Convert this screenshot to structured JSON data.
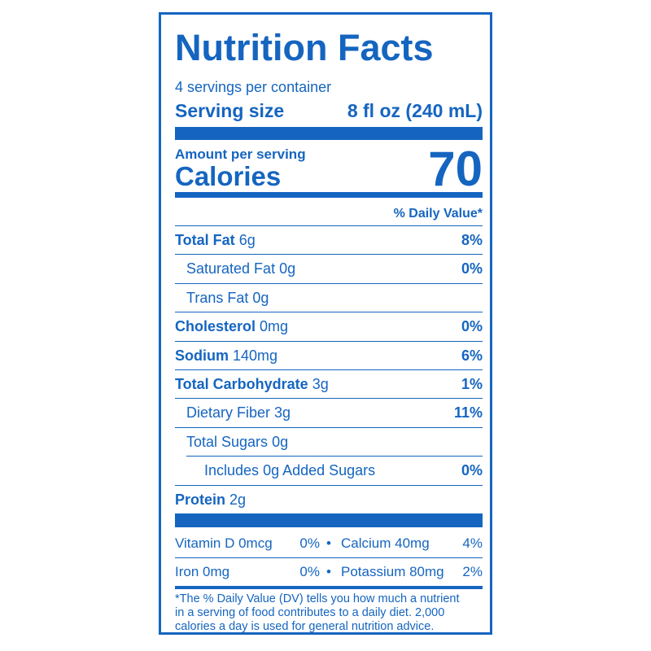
{
  "header": {
    "title": "Nutrition Facts",
    "servings": "4 servings per container",
    "serving_size_label": "Serving size",
    "serving_size_value": "8 fl oz (240 mL)"
  },
  "calories": {
    "amount_label": "Amount per serving",
    "label": "Calories",
    "value": 70
  },
  "daily_value_header": "% Daily Value*",
  "nutrients": [
    {
      "name": "Total Fat",
      "amount": "6g",
      "dv": "8%",
      "bold": true,
      "indent": 0
    },
    {
      "name": "Saturated Fat",
      "amount": "0g",
      "dv": "0%",
      "bold": false,
      "indent": 1
    },
    {
      "name": "Trans Fat",
      "amount": "0g",
      "bold": false,
      "indent": 1
    },
    {
      "name": "Cholesterol",
      "amount": "0mg",
      "dv": "0%",
      "bold": true,
      "indent": 0
    },
    {
      "name": "Sodium",
      "amount": "140mg",
      "dv": "6%",
      "bold": true,
      "indent": 0
    },
    {
      "name": "Total Carbohydrate",
      "amount": "3g",
      "dv": "1%",
      "bold": true,
      "indent": 0
    },
    {
      "name": "Dietary Fiber",
      "amount": "3g",
      "dv": "11%",
      "bold": false,
      "indent": 1
    },
    {
      "name": "Total Sugars",
      "amount": "0g",
      "bold": false,
      "indent": 1
    },
    {
      "name": "Includes",
      "amount": "0g Added Sugars",
      "dv": "0%",
      "bold": false,
      "indent": 2
    },
    {
      "name": "Protein",
      "amount": "2g",
      "bold": true,
      "indent": 0
    }
  ],
  "vitamins": [
    [
      {
        "name": "Vitamin D 0mcg",
        "dv": "0%"
      },
      {
        "name": "Calcium 40mg",
        "dv": "4%"
      }
    ],
    [
      {
        "name": "Iron 0mg",
        "dv": "0%"
      },
      {
        "name": "Potassium 80mg",
        "dv": "2%"
      }
    ]
  ],
  "bullet": "•",
  "footnote": [
    "*The % Daily Value (DV) tells you how much a nutrient",
    "in a serving of food contributes to a daily diet. 2,000",
    "calories a day is used for general nutrition advice."
  ]
}
